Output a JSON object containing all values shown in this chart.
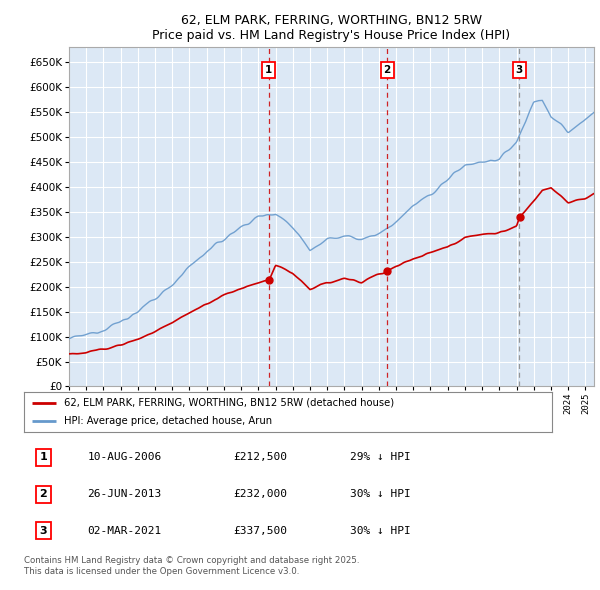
{
  "title": "62, ELM PARK, FERRING, WORTHING, BN12 5RW",
  "subtitle": "Price paid vs. HM Land Registry's House Price Index (HPI)",
  "ylim": [
    0,
    680000
  ],
  "yticks": [
    0,
    50000,
    100000,
    150000,
    200000,
    250000,
    300000,
    350000,
    400000,
    450000,
    500000,
    550000,
    600000,
    650000
  ],
  "xlim_start": 1995.0,
  "xlim_end": 2025.5,
  "fig_bg": "#ffffff",
  "plot_bg": "#dce8f5",
  "grid_color": "#ffffff",
  "red_line_color": "#cc0000",
  "blue_line_color": "#6699cc",
  "sale_dates": [
    2006.608,
    2013.486,
    2021.163
  ],
  "sale_prices": [
    212500,
    232000,
    337500
  ],
  "sale_labels": [
    "1",
    "2",
    "3"
  ],
  "sale_vline_colors": [
    "#cc0000",
    "#cc0000",
    "#888888"
  ],
  "sale_vline_styles": [
    "--",
    "--",
    "--"
  ],
  "legend_entries": [
    "62, ELM PARK, FERRING, WORTHING, BN12 5RW (detached house)",
    "HPI: Average price, detached house, Arun"
  ],
  "table_rows": [
    [
      "1",
      "10-AUG-2006",
      "£212,500",
      "29% ↓ HPI"
    ],
    [
      "2",
      "26-JUN-2013",
      "£232,000",
      "30% ↓ HPI"
    ],
    [
      "3",
      "02-MAR-2021",
      "£337,500",
      "30% ↓ HPI"
    ]
  ],
  "footer": "Contains HM Land Registry data © Crown copyright and database right 2025.\nThis data is licensed under the Open Government Licence v3.0.",
  "hpi_anchors_x": [
    1995,
    1996,
    1997,
    1998,
    1999,
    2000,
    2001,
    2002,
    2003,
    2004,
    2005,
    2006,
    2007,
    2008,
    2009,
    2010,
    2011,
    2012,
    2013,
    2014,
    2015,
    2016,
    2017,
    2018,
    2019,
    2020,
    2021,
    2021.5,
    2022,
    2022.5,
    2023,
    2023.5,
    2024,
    2025,
    2025.5
  ],
  "hpi_anchors_y": [
    95000,
    103000,
    115000,
    130000,
    150000,
    175000,
    205000,
    240000,
    270000,
    295000,
    320000,
    340000,
    348000,
    320000,
    275000,
    295000,
    300000,
    295000,
    305000,
    330000,
    360000,
    385000,
    415000,
    445000,
    450000,
    455000,
    490000,
    530000,
    570000,
    575000,
    540000,
    525000,
    510000,
    535000,
    550000
  ],
  "prop_anchors_x": [
    1995,
    1996,
    1997,
    1998,
    1999,
    2000,
    2001,
    2002,
    2003,
    2004,
    2005,
    2006,
    2006.608,
    2007,
    2008,
    2009,
    2010,
    2011,
    2012,
    2013,
    2013.486,
    2014,
    2015,
    2016,
    2017,
    2018,
    2019,
    2020,
    2021,
    2021.163,
    2022,
    2022.5,
    2023,
    2023.5,
    2024,
    2025,
    2025.5
  ],
  "prop_anchors_y": [
    65000,
    68000,
    75000,
    83000,
    95000,
    110000,
    128000,
    148000,
    165000,
    182000,
    197000,
    207000,
    212500,
    242000,
    228000,
    195000,
    208000,
    215000,
    210000,
    225000,
    232000,
    242000,
    255000,
    268000,
    280000,
    300000,
    305000,
    308000,
    320000,
    337500,
    370000,
    395000,
    400000,
    385000,
    370000,
    378000,
    385000
  ]
}
